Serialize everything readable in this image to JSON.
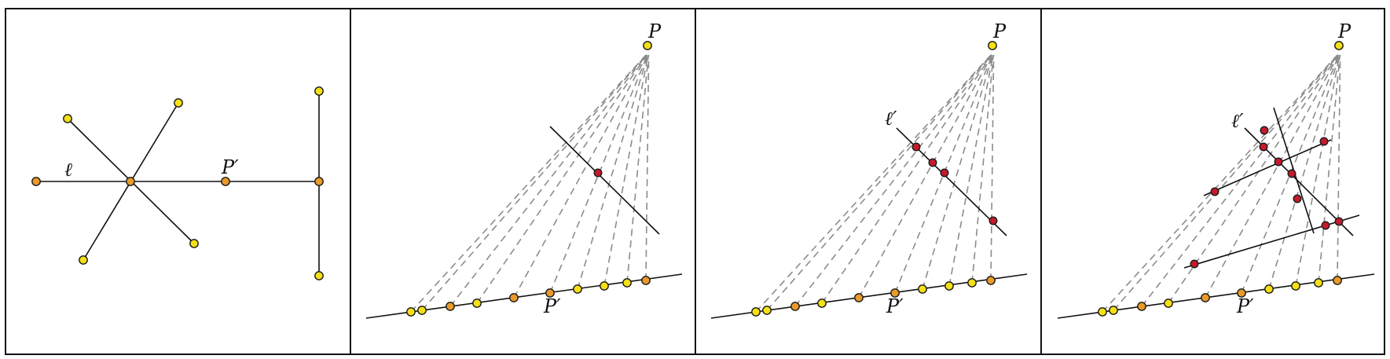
{
  "colors": {
    "yellow_point": "#f5e016",
    "orange_point": "#e99a2b",
    "red_point": "#c41a2c",
    "ray": "#8c8c8c",
    "ink": "#111111"
  },
  "panels": [
    {
      "id": "panel-1",
      "labels": {
        "line": "ℓ",
        "image_point": "P′"
      }
    },
    {
      "id": "panel-2",
      "labels": {
        "point": "P",
        "image_point": "P′"
      }
    },
    {
      "id": "panel-3",
      "labels": {
        "point": "P",
        "image_point": "P′",
        "image_line": "ℓ′"
      }
    },
    {
      "id": "panel-4",
      "labels": {
        "point": "P",
        "image_point": "P′",
        "image_line": "ℓ′"
      }
    }
  ]
}
